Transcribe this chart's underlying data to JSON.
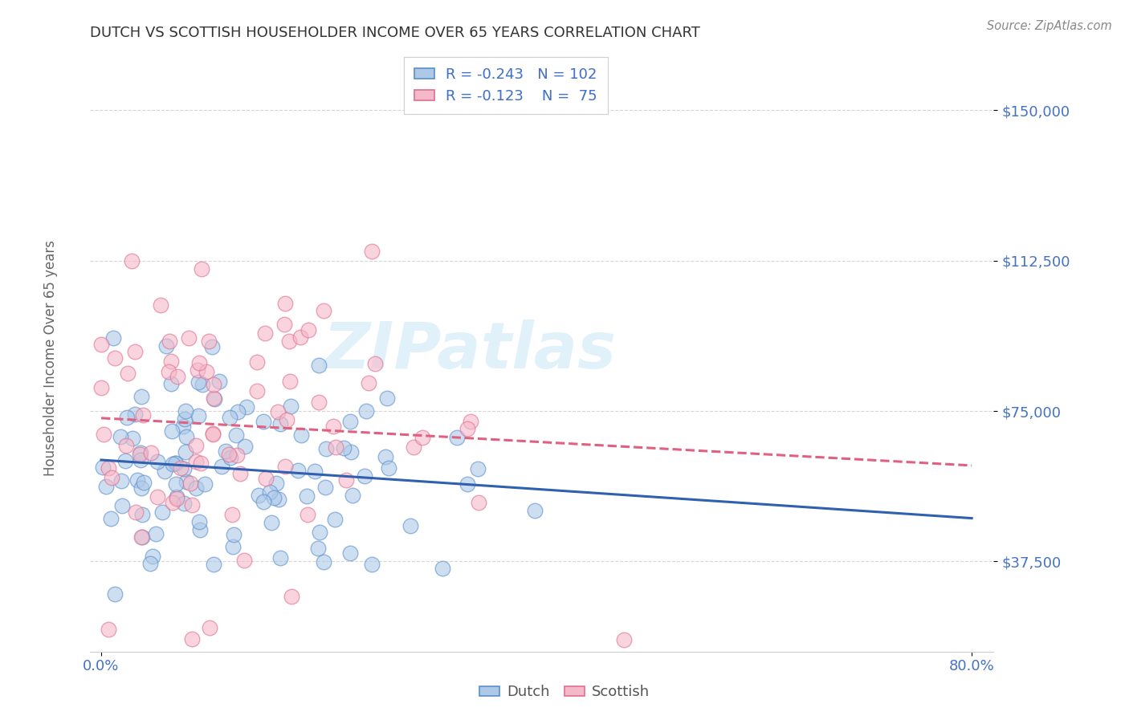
{
  "title": "DUTCH VS SCOTTISH HOUSEHOLDER INCOME OVER 65 YEARS CORRELATION CHART",
  "source": "Source: ZipAtlas.com",
  "ylabel_label": "Householder Income Over 65 years",
  "ylabel_ticks": [
    "$37,500",
    "$75,000",
    "$112,500",
    "$150,000"
  ],
  "ylabel_values": [
    37500,
    75000,
    112500,
    150000
  ],
  "xlim": [
    -0.01,
    0.82
  ],
  "ylim": [
    15000,
    165000
  ],
  "dutch_fill_color": "#aec9e8",
  "dutch_edge_color": "#5b8fcc",
  "scottish_fill_color": "#f5b8c8",
  "scottish_edge_color": "#e07090",
  "dutch_line_color": "#3060b0",
  "scottish_line_color": "#e06080",
  "dutch_R": -0.243,
  "dutch_N": 102,
  "scottish_R": -0.123,
  "scottish_N": 75,
  "legend_dutch_label": "Dutch",
  "legend_scottish_label": "Scottish",
  "watermark_text": "ZIPatlas",
  "background_color": "#ffffff",
  "grid_color": "#cccccc",
  "title_color": "#333333",
  "axis_tick_color": "#4472c4",
  "xtick_color": "#888888",
  "source_color": "#888888",
  "ylabel_color": "#666666"
}
